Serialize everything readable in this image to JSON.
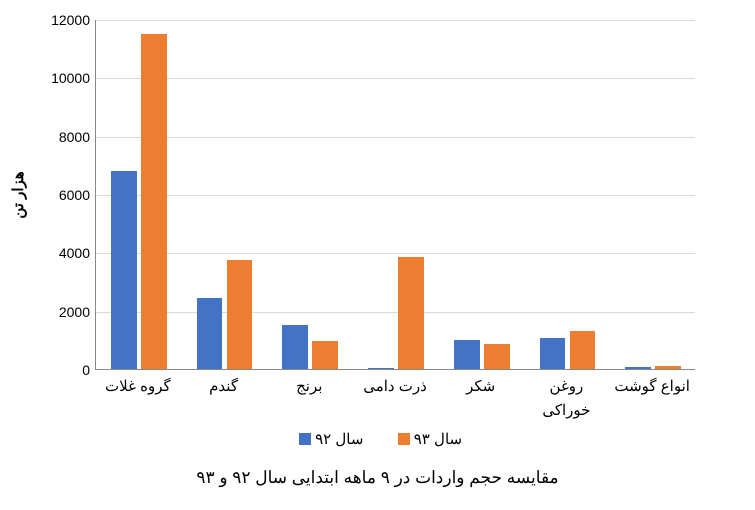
{
  "chart": {
    "type": "bar-grouped",
    "background_color": "#ffffff",
    "grid_color": "#d9d9d9",
    "axis_color": "#888888",
    "title_fontsize": 17,
    "label_fontsize": 15,
    "tick_fontsize": 14,
    "ylabel": "هزار تن",
    "ylim": [
      0,
      12000
    ],
    "ytick_step": 2000,
    "yticks": [
      0,
      2000,
      4000,
      6000,
      8000,
      10000,
      12000
    ],
    "categories": [
      "گروه غلات",
      "گندم",
      "برنج",
      "ذرت دامی",
      "شکر",
      "روغن خوراکی",
      "انواع گوشت"
    ],
    "series": [
      {
        "name": "سال ۹۲",
        "color": "#4472c4",
        "values": [
          6800,
          2450,
          1500,
          50,
          1000,
          1080,
          60
        ]
      },
      {
        "name": "سال ۹۳",
        "color": "#ed7d31",
        "values": [
          11500,
          3750,
          950,
          3850,
          850,
          1300,
          100
        ]
      }
    ],
    "bar_width": 0.3,
    "group_gap": 0.05,
    "caption": "مقایسه حجم واردات در ۹ ماهه ابتدایی سال ۹۲ و ۹۳"
  }
}
